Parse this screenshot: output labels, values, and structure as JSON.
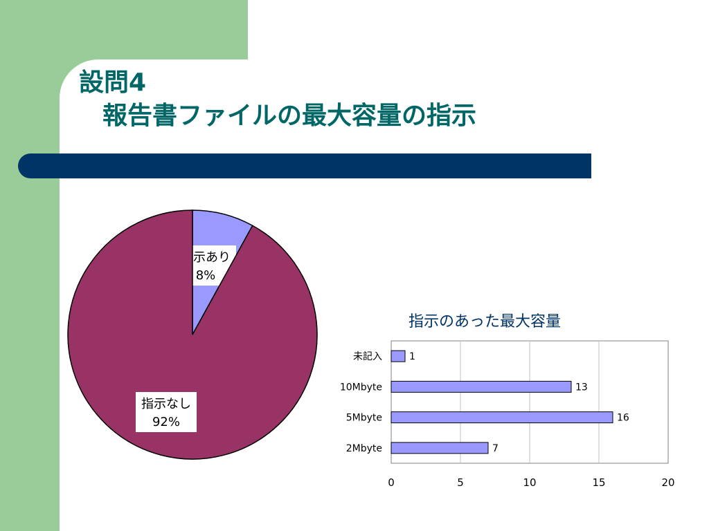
{
  "slide": {
    "title_line1": "設問4",
    "title_line2": "報告書ファイルの最大容量の指示"
  },
  "colors": {
    "left_panel": "#99cc99",
    "title_text": "#006666",
    "title_bar": "#003366",
    "pie_yes": "#9999ff",
    "pie_no": "#993366",
    "bar_fill": "#9999ff"
  },
  "chart_data": [
    {
      "type": "pie",
      "slices": [
        {
          "label": "指示あり",
          "percent_label": "8%",
          "value": 8,
          "color": "#9999ff"
        },
        {
          "label": "指示なし",
          "percent_label": "92%",
          "value": 92,
          "color": "#993366"
        }
      ],
      "start_angle_deg": 0,
      "direction": "clockwise"
    },
    {
      "type": "bar",
      "orientation": "horizontal",
      "title": "指示のあった最大容量",
      "categories": [
        "未記入",
        "10Mbyte",
        "5Mbyte",
        "2Mbyte"
      ],
      "values": [
        1,
        13,
        16,
        7
      ],
      "xlim": [
        0,
        20
      ],
      "xticks": [
        0,
        5,
        10,
        15,
        20
      ],
      "grid": "vertical",
      "data_labels": true,
      "legend": "none"
    }
  ]
}
